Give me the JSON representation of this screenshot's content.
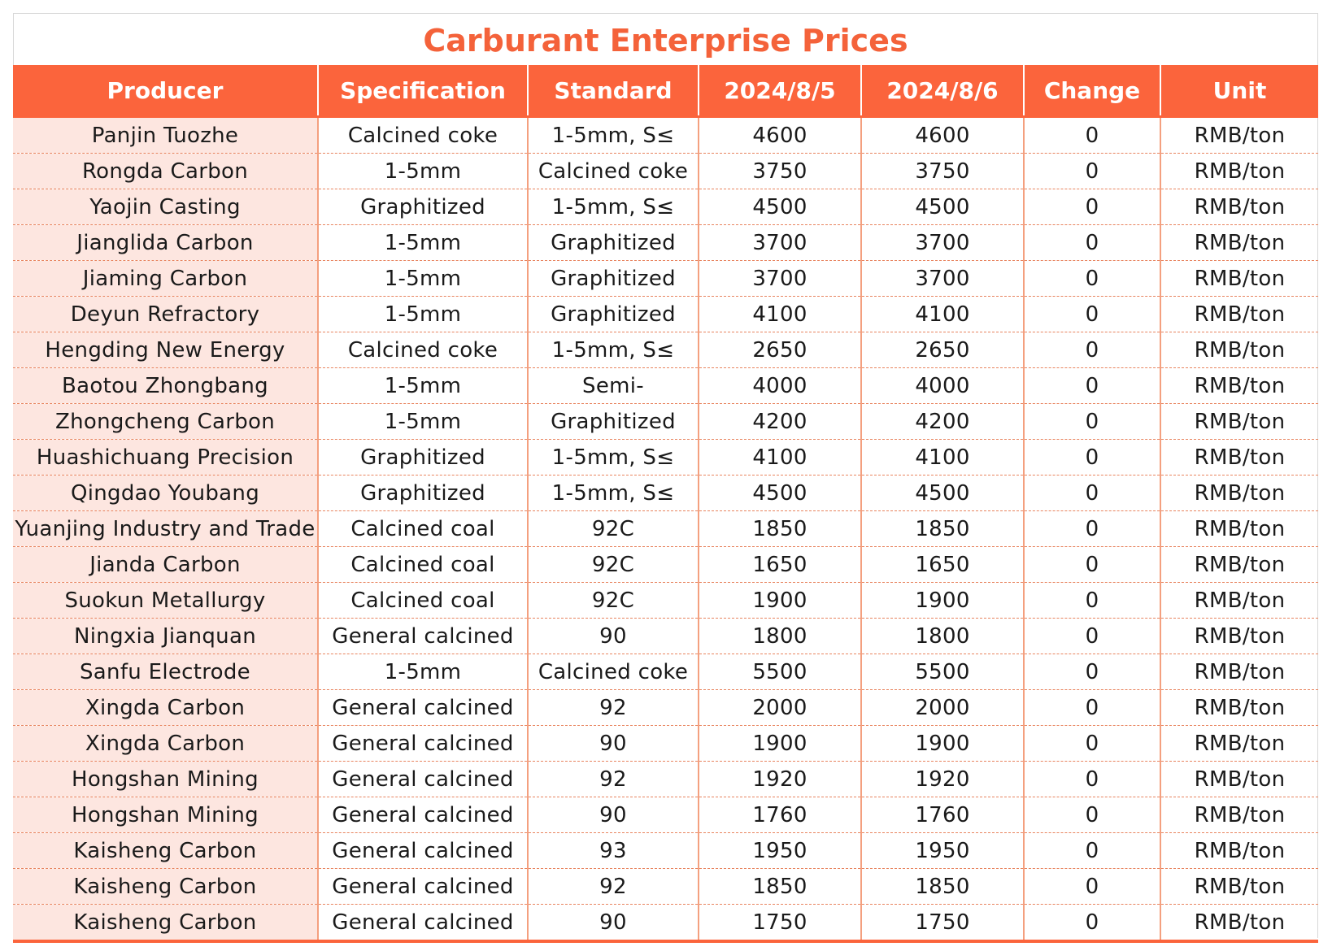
{
  "title": "Carburant Enterprise Prices",
  "headers": [
    "Producer",
    "Specification",
    "Standard",
    "2024/8/5",
    "2024/8/6",
    "Change",
    "Unit"
  ],
  "rows": [
    [
      "Panjin Tuozhe",
      "Calcined coke",
      "1-5mm, S≤",
      "4600",
      "4600",
      "0",
      "RMB/ton"
    ],
    [
      "Rongda Carbon",
      "1-5mm",
      "Calcined coke",
      "3750",
      "3750",
      "0",
      "RMB/ton"
    ],
    [
      "Yaojin Casting",
      "Graphitized",
      "1-5mm, S≤",
      "4500",
      "4500",
      "0",
      "RMB/ton"
    ],
    [
      "Jianglida Carbon",
      "1-5mm",
      "Graphitized",
      "3700",
      "3700",
      "0",
      "RMB/ton"
    ],
    [
      "Jiaming Carbon",
      "1-5mm",
      "Graphitized",
      "3700",
      "3700",
      "0",
      "RMB/ton"
    ],
    [
      "Deyun Refractory",
      "1-5mm",
      "Graphitized",
      "4100",
      "4100",
      "0",
      "RMB/ton"
    ],
    [
      "Hengding New Energy",
      "Calcined coke",
      "1-5mm, S≤",
      "2650",
      "2650",
      "0",
      "RMB/ton"
    ],
    [
      "Baotou Zhongbang",
      "1-5mm",
      "Semi-",
      "4000",
      "4000",
      "0",
      "RMB/ton"
    ],
    [
      "Zhongcheng Carbon",
      "1-5mm",
      "Graphitized",
      "4200",
      "4200",
      "0",
      "RMB/ton"
    ],
    [
      "Huashichuang Precision",
      "Graphitized",
      "1-5mm, S≤",
      "4100",
      "4100",
      "0",
      "RMB/ton"
    ],
    [
      "Qingdao Youbang",
      "Graphitized",
      "1-5mm, S≤",
      "4500",
      "4500",
      "0",
      "RMB/ton"
    ],
    [
      "Yuanjing Industry and Trade",
      "Calcined coal",
      "92C",
      "1850",
      "1850",
      "0",
      "RMB/ton"
    ],
    [
      "Jianda Carbon",
      "Calcined coal",
      "92C",
      "1650",
      "1650",
      "0",
      "RMB/ton"
    ],
    [
      "Suokun Metallurgy",
      "Calcined coal",
      "92C",
      "1900",
      "1900",
      "0",
      "RMB/ton"
    ],
    [
      "Ningxia Jianquan",
      "General calcined",
      "90",
      "1800",
      "1800",
      "0",
      "RMB/ton"
    ],
    [
      "Sanfu Electrode",
      "1-5mm",
      "Calcined coke",
      "5500",
      "5500",
      "0",
      "RMB/ton"
    ],
    [
      "Xingda Carbon",
      "General calcined",
      "92",
      "2000",
      "2000",
      "0",
      "RMB/ton"
    ],
    [
      "Xingda Carbon",
      "General calcined",
      "90",
      "1900",
      "1900",
      "0",
      "RMB/ton"
    ],
    [
      "Hongshan Mining",
      "General calcined",
      "92",
      "1920",
      "1920",
      "0",
      "RMB/ton"
    ],
    [
      "Hongshan Mining",
      "General calcined",
      "90",
      "1760",
      "1760",
      "0",
      "RMB/ton"
    ],
    [
      "Kaisheng Carbon",
      "General calcined",
      "93",
      "1950",
      "1950",
      "0",
      "RMB/ton"
    ],
    [
      "Kaisheng Carbon",
      "General calcined",
      "92",
      "1850",
      "1850",
      "0",
      "RMB/ton"
    ],
    [
      "Kaisheng Carbon",
      "General calcined",
      "90",
      "1750",
      "1750",
      "0",
      "RMB/ton"
    ]
  ]
}
